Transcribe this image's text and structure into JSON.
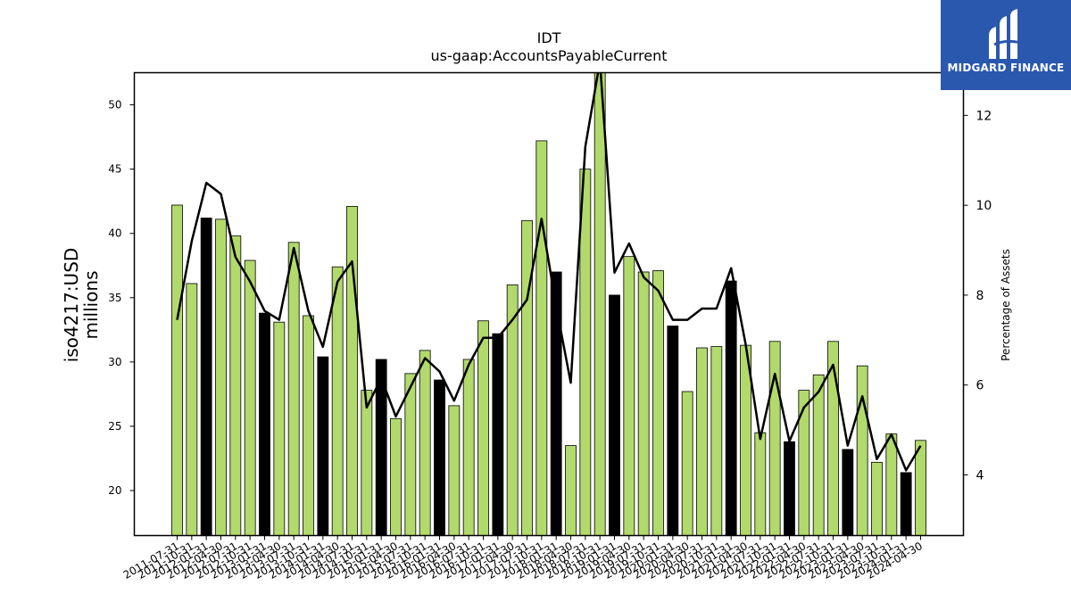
{
  "chart_data": {
    "type": "bar",
    "title": "IDT",
    "subtitle": "us-gaap:AccountsPayableCurrent",
    "ylabel": "iso4217:USD\nmillions",
    "y2label": "Percentage of Assets",
    "ylim": [
      16.5,
      52.5
    ],
    "y2lim": [
      2.65,
      12.95
    ],
    "yticks": [
      20,
      25,
      30,
      35,
      40,
      45,
      50
    ],
    "y2ticks": [
      4,
      6,
      8,
      10,
      12
    ],
    "grid": false,
    "colors": {
      "bar": "#b2d96b",
      "bar_highlight": "#000000",
      "line": "#000000",
      "edge": "#000000"
    },
    "categories": [
      "2011-07-31",
      "2011-10-31",
      "2012-01-31",
      "2012-04-30",
      "2012-07-31",
      "2012-10-31",
      "2013-01-31",
      "2013-04-30",
      "2013-07-31",
      "2013-10-31",
      "2014-01-31",
      "2014-04-30",
      "2014-07-31",
      "2014-10-31",
      "2015-01-31",
      "2015-04-30",
      "2015-07-31",
      "2015-10-31",
      "2016-01-31",
      "2016-04-30",
      "2016-07-31",
      "2016-10-31",
      "2017-01-31",
      "2017-04-30",
      "2017-07-31",
      "2017-10-31",
      "2018-01-31",
      "2018-04-30",
      "2018-07-31",
      "2018-10-31",
      "2019-01-31",
      "2019-04-30",
      "2019-07-31",
      "2019-10-31",
      "2020-01-31",
      "2020-04-30",
      "2020-07-31",
      "2020-10-31",
      "2021-01-31",
      "2021-04-30",
      "2021-07-31",
      "2021-10-31",
      "2022-01-31",
      "2022-04-30",
      "2022-07-31",
      "2022-10-31",
      "2023-01-31",
      "2023-04-30",
      "2023-07-31",
      "2023-10-31",
      "2024-01-31",
      "2024-04-30"
    ],
    "series": [
      {
        "kind": "bar",
        "axis": "left",
        "values": [
          42.2,
          36.1,
          41.2,
          41.1,
          39.8,
          37.9,
          33.8,
          33.1,
          39.3,
          33.6,
          30.4,
          37.4,
          42.1,
          27.8,
          30.2,
          25.6,
          29.1,
          30.9,
          28.6,
          26.6,
          30.2,
          33.2,
          32.2,
          36.0,
          41.0,
          47.2,
          37.0,
          23.5,
          45.0,
          52.5,
          35.2,
          38.2,
          37.0,
          37.1,
          32.8,
          27.7,
          31.1,
          31.2,
          36.3,
          31.3,
          24.5,
          31.6,
          23.8,
          27.8,
          29.0,
          31.6,
          23.2,
          29.7,
          22.2,
          24.4,
          21.4,
          23.9
        ],
        "highlight": [
          false,
          false,
          true,
          false,
          false,
          false,
          true,
          false,
          false,
          false,
          true,
          false,
          false,
          false,
          true,
          false,
          false,
          false,
          true,
          false,
          false,
          false,
          true,
          false,
          false,
          false,
          true,
          false,
          false,
          false,
          true,
          false,
          false,
          false,
          true,
          false,
          false,
          false,
          true,
          false,
          false,
          false,
          true,
          false,
          false,
          false,
          true,
          false,
          false,
          false,
          true,
          false
        ]
      },
      {
        "kind": "line",
        "axis": "right",
        "values": [
          7.45,
          9.2,
          10.5,
          10.25,
          8.85,
          8.3,
          7.65,
          7.45,
          9.05,
          7.65,
          6.85,
          8.3,
          8.75,
          5.5,
          6.15,
          5.3,
          5.95,
          6.6,
          6.3,
          5.65,
          6.45,
          7.05,
          7.05,
          7.45,
          7.9,
          9.7,
          7.75,
          6.05,
          11.3,
          13.2,
          8.5,
          9.15,
          8.4,
          8.1,
          7.45,
          7.45,
          7.7,
          7.7,
          8.6,
          6.9,
          4.8,
          6.25,
          4.75,
          5.5,
          5.85,
          6.45,
          4.65,
          5.75,
          4.35,
          4.9,
          4.1,
          4.65
        ]
      }
    ]
  },
  "logo": {
    "text": "MIDGARD FINANCE",
    "icon": "midgard-logo-icon"
  }
}
